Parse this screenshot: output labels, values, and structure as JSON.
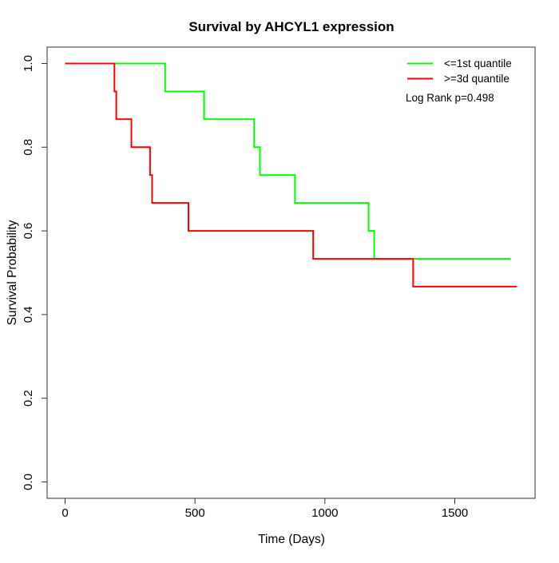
{
  "chart_data": {
    "type": "line",
    "subtype": "kaplan-meier-step",
    "title": "Survival by AHCYL1 expression",
    "xlabel": "Time (Days)",
    "ylabel": "Survival Probability",
    "xlim": [
      0,
      1750
    ],
    "ylim": [
      0.0,
      1.0
    ],
    "x_ticks": [
      0,
      500,
      1000,
      1500
    ],
    "y_ticks": [
      "0.0",
      "0.2",
      "0.4",
      "0.6",
      "0.8",
      "1.0"
    ],
    "grid": false,
    "legend_position": "top-right",
    "annotation": "Log Rank p=0.498",
    "series": [
      {
        "name": "<=1st quantile",
        "color": "#00ff00",
        "points": [
          [
            0,
            1.0
          ],
          [
            385,
            1.0
          ],
          [
            385,
            0.9333
          ],
          [
            535,
            0.9333
          ],
          [
            535,
            0.8667
          ],
          [
            728,
            0.8667
          ],
          [
            728,
            0.8
          ],
          [
            750,
            0.8
          ],
          [
            750,
            0.7333
          ],
          [
            885,
            0.7333
          ],
          [
            885,
            0.6667
          ],
          [
            1168,
            0.6667
          ],
          [
            1168,
            0.6
          ],
          [
            1190,
            0.6
          ],
          [
            1190,
            0.5333
          ],
          [
            1715,
            0.5333
          ]
        ]
      },
      {
        "name": ">=3d quantile",
        "color": "#ff0000",
        "points": [
          [
            0,
            1.0
          ],
          [
            190,
            1.0
          ],
          [
            190,
            0.9333
          ],
          [
            197,
            0.9333
          ],
          [
            197,
            0.8667
          ],
          [
            255,
            0.8667
          ],
          [
            255,
            0.8
          ],
          [
            327,
            0.8
          ],
          [
            327,
            0.7333
          ],
          [
            335,
            0.7333
          ],
          [
            335,
            0.6667
          ],
          [
            475,
            0.6667
          ],
          [
            475,
            0.6
          ],
          [
            955,
            0.6
          ],
          [
            955,
            0.5333
          ],
          [
            1340,
            0.5333
          ],
          [
            1340,
            0.4667
          ],
          [
            1739,
            0.4667
          ]
        ]
      }
    ]
  }
}
